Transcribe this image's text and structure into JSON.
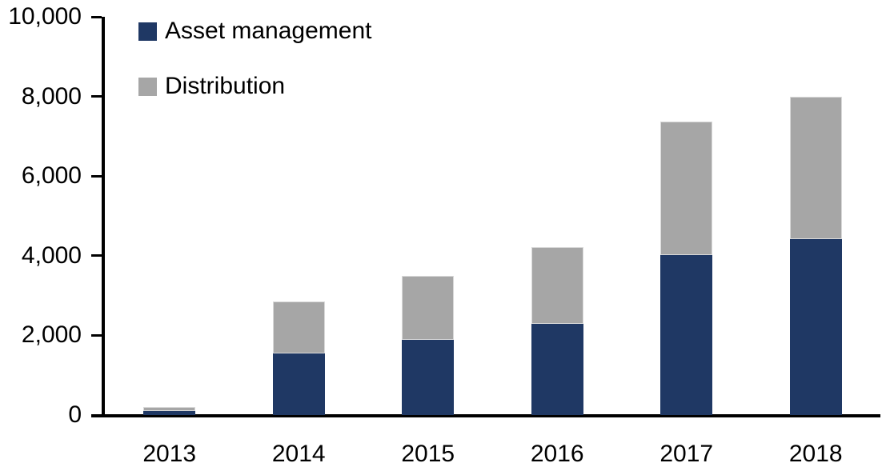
{
  "chart_data": {
    "type": "bar",
    "stacked": true,
    "title": "",
    "xlabel": "",
    "ylabel": "",
    "categories": [
      "2013",
      "2014",
      "2015",
      "2016",
      "2017",
      "2018"
    ],
    "series": [
      {
        "name": "Asset management",
        "color": "#1F3864",
        "stroke": "",
        "values": [
          100,
          1550,
          1880,
          2280,
          4020,
          4420
        ]
      },
      {
        "name": "Distribution",
        "color": "#A6A6A6",
        "stroke": "#D9D9D9",
        "values": [
          100,
          1300,
          1620,
          1940,
          3350,
          3580
        ]
      }
    ],
    "totals": [
      200,
      2850,
      3500,
      4220,
      7370,
      8000
    ],
    "ylim": [
      0,
      10000
    ],
    "ytick_interval": 2000,
    "ytick_labels": [
      "0",
      "2,000",
      "4,000",
      "6,000",
      "8,000",
      "10,000"
    ],
    "grid": false,
    "legend_position": "top-left-inside",
    "axis_color": "#000000",
    "text_color": "#000000",
    "background_color": "#FFFFFF"
  }
}
